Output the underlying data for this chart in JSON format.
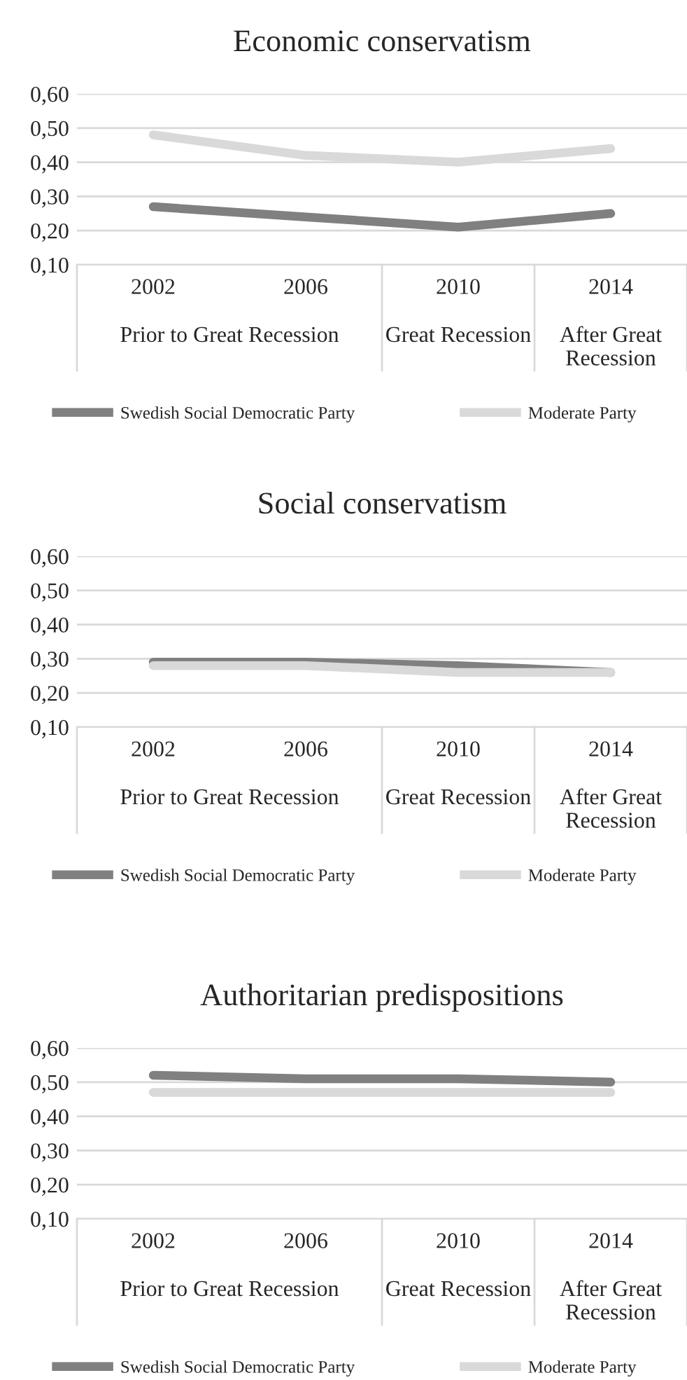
{
  "chart_data": [
    {
      "type": "line",
      "title": "Economic conservatism",
      "categories": [
        "2002",
        "2006",
        "2010",
        "2014"
      ],
      "series": [
        {
          "name": "Swedish Social Democratic Party",
          "color": "#808080",
          "values": [
            0.27,
            0.24,
            0.21,
            0.25
          ]
        },
        {
          "name": "Moderate Party",
          "color": "#d9d9d9",
          "values": [
            0.48,
            0.42,
            0.4,
            0.44
          ]
        }
      ],
      "ylim": [
        0.1,
        0.6
      ],
      "yticks": [
        {
          "value": 0.1,
          "label": "0,10"
        },
        {
          "value": 0.2,
          "label": "0,20"
        },
        {
          "value": 0.3,
          "label": "0,30"
        },
        {
          "value": 0.4,
          "label": "0,40"
        },
        {
          "value": 0.5,
          "label": "0,50"
        },
        {
          "value": 0.6,
          "label": "0,60"
        }
      ],
      "annotations": [
        "Prior to Great Recession",
        "Great Recession",
        "After Great Recession"
      ],
      "grid": "y",
      "legend": "bottom",
      "marker": "none",
      "line_style": "solid"
    },
    {
      "type": "line",
      "title": "Social conservatism",
      "categories": [
        "2002",
        "2006",
        "2010",
        "2014"
      ],
      "series": [
        {
          "name": "Swedish Social Democratic Party",
          "color": "#808080",
          "values": [
            0.29,
            0.29,
            0.28,
            0.26
          ]
        },
        {
          "name": "Moderate Party",
          "color": "#d9d9d9",
          "values": [
            0.28,
            0.28,
            0.26,
            0.26
          ]
        }
      ],
      "ylim": [
        0.1,
        0.6
      ],
      "yticks": [
        {
          "value": 0.1,
          "label": "0,10"
        },
        {
          "value": 0.2,
          "label": "0,20"
        },
        {
          "value": 0.3,
          "label": "0,30"
        },
        {
          "value": 0.4,
          "label": "0,40"
        },
        {
          "value": 0.5,
          "label": "0,50"
        },
        {
          "value": 0.6,
          "label": "0,60"
        }
      ],
      "annotations": [
        "Prior to Great Recession",
        "Great Recession",
        "After Great Recession"
      ],
      "grid": "y",
      "legend": "bottom",
      "marker": "none",
      "line_style": "solid"
    },
    {
      "type": "line",
      "title": "Authoritarian predispositions",
      "categories": [
        "2002",
        "2006",
        "2010",
        "2014"
      ],
      "series": [
        {
          "name": "Swedish Social Democratic Party",
          "color": "#808080",
          "values": [
            0.52,
            0.51,
            0.51,
            0.5
          ]
        },
        {
          "name": "Moderate Party",
          "color": "#d9d9d9",
          "values": [
            0.47,
            0.47,
            0.47,
            0.47
          ]
        }
      ],
      "ylim": [
        0.1,
        0.6
      ],
      "yticks": [
        {
          "value": 0.1,
          "label": "0,10"
        },
        {
          "value": 0.2,
          "label": "0,20"
        },
        {
          "value": 0.3,
          "label": "0,30"
        },
        {
          "value": 0.4,
          "label": "0,40"
        },
        {
          "value": 0.5,
          "label": "0,50"
        },
        {
          "value": 0.6,
          "label": "0,60"
        }
      ],
      "annotations": [
        "Prior to Great Recession",
        "Great Recession",
        "After Great Recession"
      ],
      "grid": "y",
      "legend": "bottom",
      "marker": "none",
      "line_style": "solid"
    }
  ]
}
